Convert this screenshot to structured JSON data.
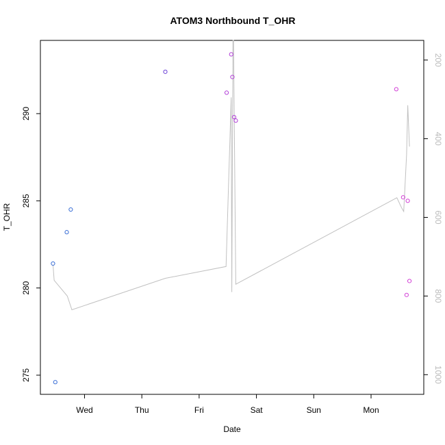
{
  "chart_data": {
    "type": "scatter",
    "title": "ATOM3 Northbound T_OHR",
    "xlabel": "Date",
    "ylabel": "T_OHR",
    "x_ticks": [
      "Wed",
      "Thu",
      "Fri",
      "Sat",
      "Sun",
      "Mon"
    ],
    "y_ticks": [
      275,
      280,
      285,
      290
    ],
    "y_lim": [
      273.9,
      294.2
    ],
    "y2_ticks": [
      200,
      400,
      600,
      800,
      1000
    ],
    "y2_lim": [
      1050,
      150
    ],
    "x_lim_days": [
      -0.77,
      5.92
    ],
    "points": [
      {
        "x": -0.55,
        "y": 281.4,
        "color": "#3a6fd6"
      },
      {
        "x": -0.51,
        "y": 274.6,
        "color": "#3a6fd6"
      },
      {
        "x": -0.31,
        "y": 283.2,
        "color": "#3a6fd6"
      },
      {
        "x": -0.24,
        "y": 284.5,
        "color": "#3a6fd6"
      },
      {
        "x": 1.41,
        "y": 292.4,
        "color": "#6a3fd6"
      },
      {
        "x": 2.48,
        "y": 291.2,
        "color": "#b23fd8"
      },
      {
        "x": 2.56,
        "y": 293.4,
        "color": "#b23fd8"
      },
      {
        "x": 2.58,
        "y": 292.1,
        "color": "#b23fd8"
      },
      {
        "x": 2.61,
        "y": 289.8,
        "color": "#b23fd8"
      },
      {
        "x": 2.64,
        "y": 289.6,
        "color": "#b23fd8"
      },
      {
        "x": 5.44,
        "y": 291.4,
        "color": "#d23fd6"
      },
      {
        "x": 5.56,
        "y": 285.2,
        "color": "#d23fd6"
      },
      {
        "x": 5.62,
        "y": 279.6,
        "color": "#d23fd6"
      },
      {
        "x": 5.64,
        "y": 285.0,
        "color": "#d23fd6"
      },
      {
        "x": 5.67,
        "y": 280.4,
        "color": "#d23fd6"
      }
    ],
    "line_series": {
      "color": "#c0c0c0",
      "x": [
        -0.55,
        -0.53,
        -0.3,
        -0.22,
        1.41,
        2.47,
        2.56,
        2.57,
        2.59,
        2.6,
        2.64,
        5.45,
        5.53,
        5.57,
        5.62,
        5.64,
        5.67
      ],
      "y2": [
        720,
        760,
        800,
        835,
        755,
        725,
        295,
        790,
        150,
        150,
        770,
        550,
        575,
        585,
        440,
        315,
        420
      ]
    },
    "grid": false,
    "legend": "none"
  }
}
